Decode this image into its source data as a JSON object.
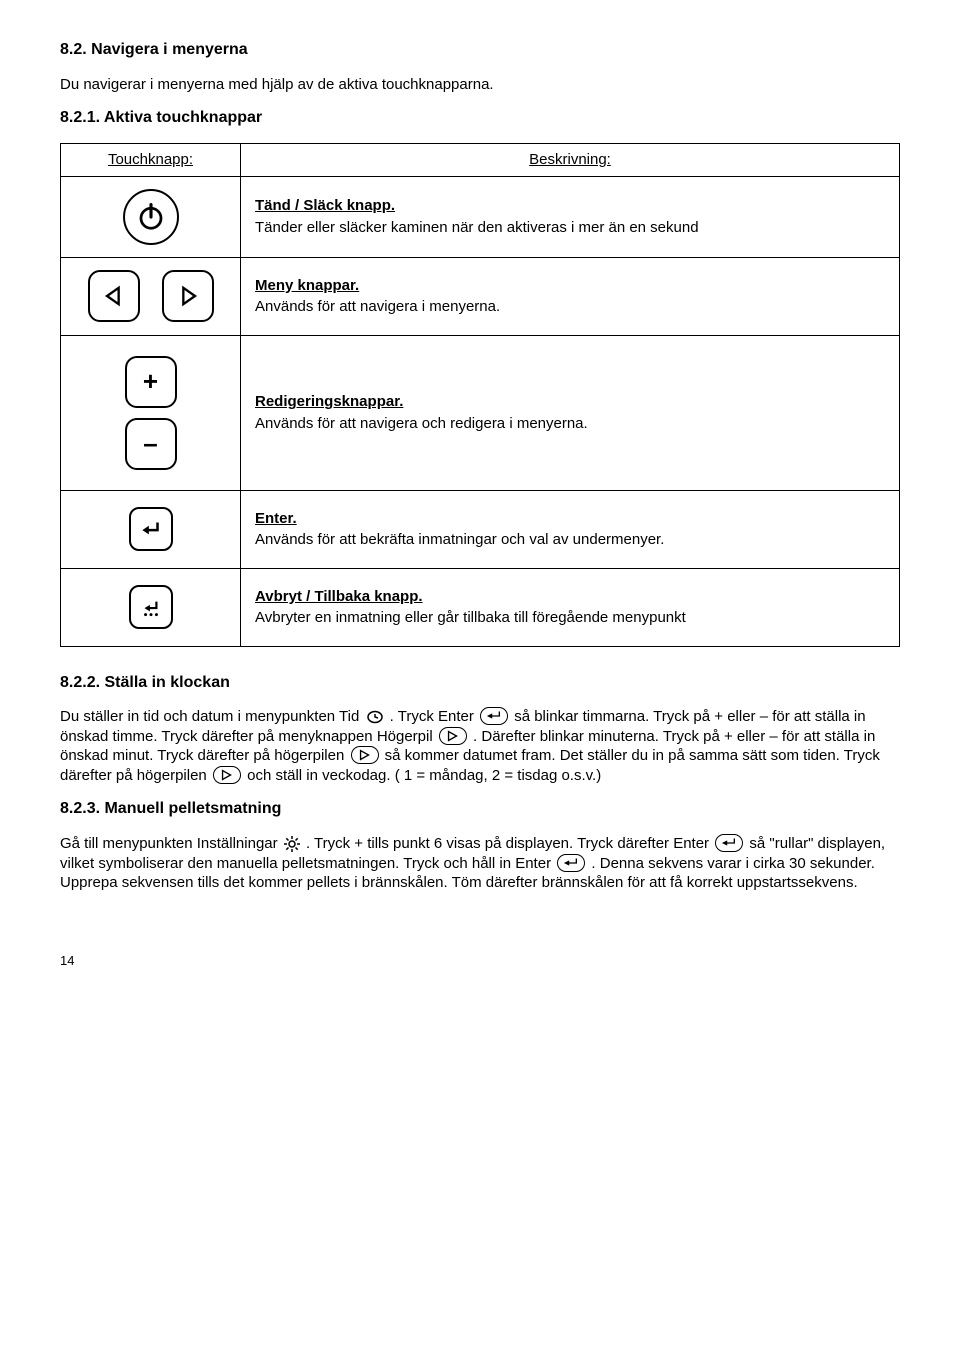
{
  "sections": {
    "s82": {
      "title": "8.2. Navigera i menyerna",
      "intro": "Du navigerar i menyerna med hjälp av de aktiva touchknapparna."
    },
    "s821": {
      "title": "8.2.1. Aktiva touchknappar"
    },
    "s822": {
      "title": "8.2.2. Ställa in klockan",
      "p1a": "Du ställer in tid och datum i menypunkten Tid ",
      "p1b": ". Tryck Enter ",
      "p1c": " så blinkar timmarna. Tryck på + eller – för att ställa in önskad timme. Tryck därefter på menyknappen Högerpil ",
      "p1d": ". Därefter blinkar minuterna. Tryck på + eller – för att ställa in önskad minut. Tryck därefter på högerpilen ",
      "p1e": " så kommer datumet fram. Det ställer du in på samma sätt som tiden. Tryck därefter på högerpilen ",
      "p1f": " och ställ in veckodag. ( 1 = måndag, 2 = tisdag o.s.v.)"
    },
    "s823": {
      "title": "8.2.3. Manuell pelletsmatning",
      "p1a": "Gå till menypunkten Inställningar ",
      "p1b": ". Tryck + tills punkt 6 visas på displayen. Tryck därefter Enter ",
      "p1c": " så \"rullar\" displayen, vilket symboliserar den manuella pelletsmatningen. Tryck och håll in Enter ",
      "p1d": ". Denna sekvens varar i cirka 30 sekunder. Upprepa sekvensen tills det kommer pellets i brännskålen.  Töm därefter brännskålen för att få korrekt uppstartssekvens."
    }
  },
  "table": {
    "header_left": "Touchknapp:",
    "header_right": "Beskrivning:",
    "rows": [
      {
        "head": "Tänd / Släck knapp.",
        "body": "Tänder eller släcker kaminen när den aktiveras i mer än en sekund"
      },
      {
        "head": "Meny knappar.",
        "body": "Används för att navigera i menyerna."
      },
      {
        "head": "Redigeringsknappar.",
        "body": "Används för att navigera och redigera i menyerna."
      },
      {
        "head": "Enter.",
        "body": "Används för att bekräfta inmatningar och val av undermenyer."
      },
      {
        "head": "Avbryt / Tillbaka knapp.",
        "body": "Avbryter en inmatning eller går tillbaka till föregående menypunkt"
      }
    ]
  },
  "page_number": "14"
}
